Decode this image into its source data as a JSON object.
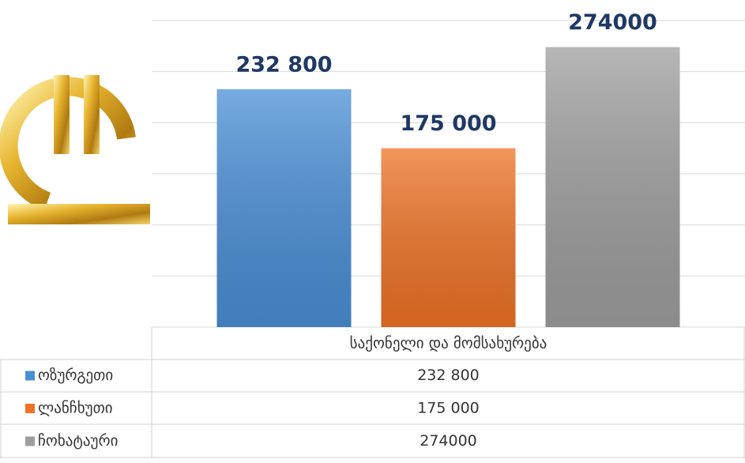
{
  "chart_data": {
    "type": "bar",
    "categories": [
      "საქონელი და მომსახურება"
    ],
    "series": [
      {
        "name": "ოზურგეთი",
        "color": "#4a8fd6",
        "values": [
          232800
        ],
        "value_labels": [
          "232 800"
        ]
      },
      {
        "name": "ლანჩხუთი",
        "color": "#ee7326",
        "values": [
          175000
        ],
        "value_labels": [
          "175 000"
        ]
      },
      {
        "name": "ჩოხატაური",
        "color": "#9e9e9e",
        "values": [
          274000
        ],
        "value_labels": [
          "274000"
        ]
      }
    ],
    "ylim": [
      0,
      300000
    ],
    "yticks": [
      0,
      50000,
      100000,
      150000,
      200000,
      250000,
      300000
    ],
    "grid": true
  }
}
